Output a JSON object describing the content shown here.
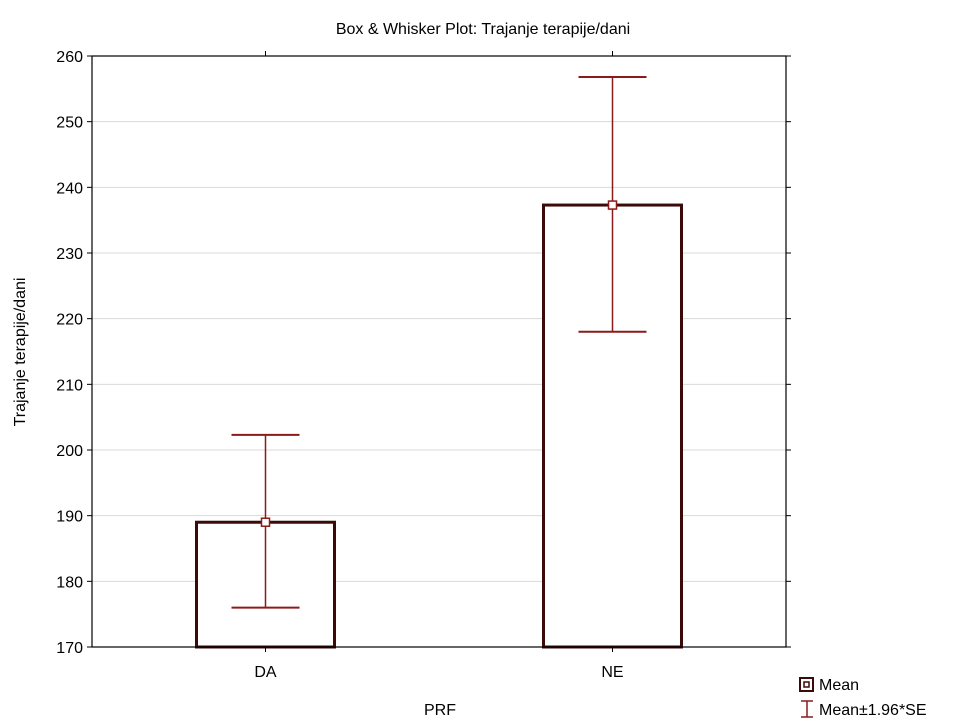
{
  "chart_data": {
    "type": "bar",
    "title": "Box & Whisker Plot: Trajanje terapije/dani",
    "xlabel": "PRF",
    "ylabel": "Trajanje terapije/dani",
    "categories": [
      "DA",
      "NE"
    ],
    "series": [
      {
        "name": "Mean",
        "values": [
          189,
          237.3
        ],
        "lower": [
          176,
          218
        ],
        "upper": [
          202.3,
          256.8
        ]
      }
    ],
    "whisker_label": "Mean±1.96*SE",
    "ylim": [
      170,
      260
    ],
    "yticks": [
      170,
      180,
      190,
      200,
      210,
      220,
      230,
      240,
      250,
      260
    ],
    "grid": true,
    "legend_position": "bottom-right",
    "colors": {
      "box": "#3d0a0a",
      "whisker": "#8b1a1a",
      "grid": "#d9d9d9",
      "axis": "#000000"
    }
  }
}
